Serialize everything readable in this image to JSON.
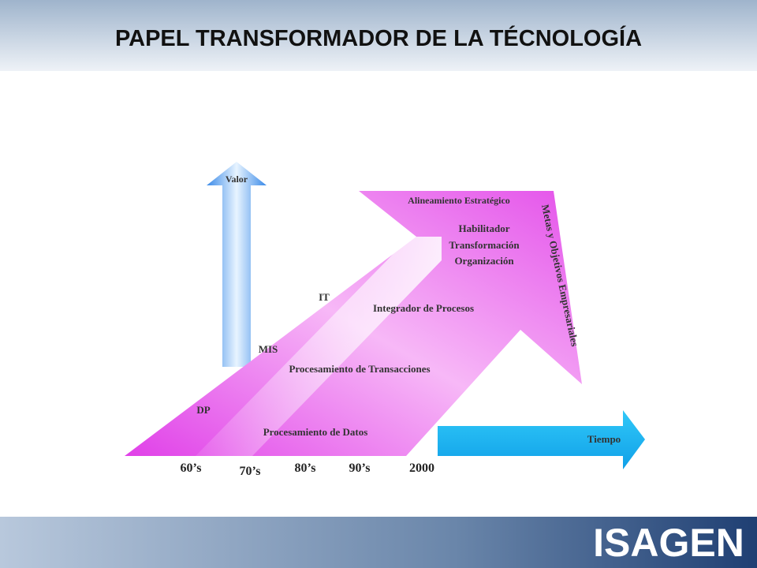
{
  "header": {
    "title": "PAPEL TRANSFORMADOR DE LA TÉCNOLOGÍA"
  },
  "axes": {
    "vertical": "Valor",
    "horizontal": "Tiempo"
  },
  "arrow": {
    "top": "Alineamiento Estratégico",
    "head_lines": [
      "Habilitador",
      "Transformación",
      "Organización"
    ],
    "side": "Metas y Objetivos Empresariales"
  },
  "stages": [
    {
      "name": "DP",
      "role": "Procesamiento de Datos"
    },
    {
      "name": "MIS",
      "role": "Procesamiento de Transacciones"
    },
    {
      "name": "IT",
      "role": "Integrador de Procesos"
    }
  ],
  "periods": [
    "60’s",
    "70’s",
    "80’s",
    "90’s",
    "2000"
  ],
  "logo": "ISAGEN"
}
